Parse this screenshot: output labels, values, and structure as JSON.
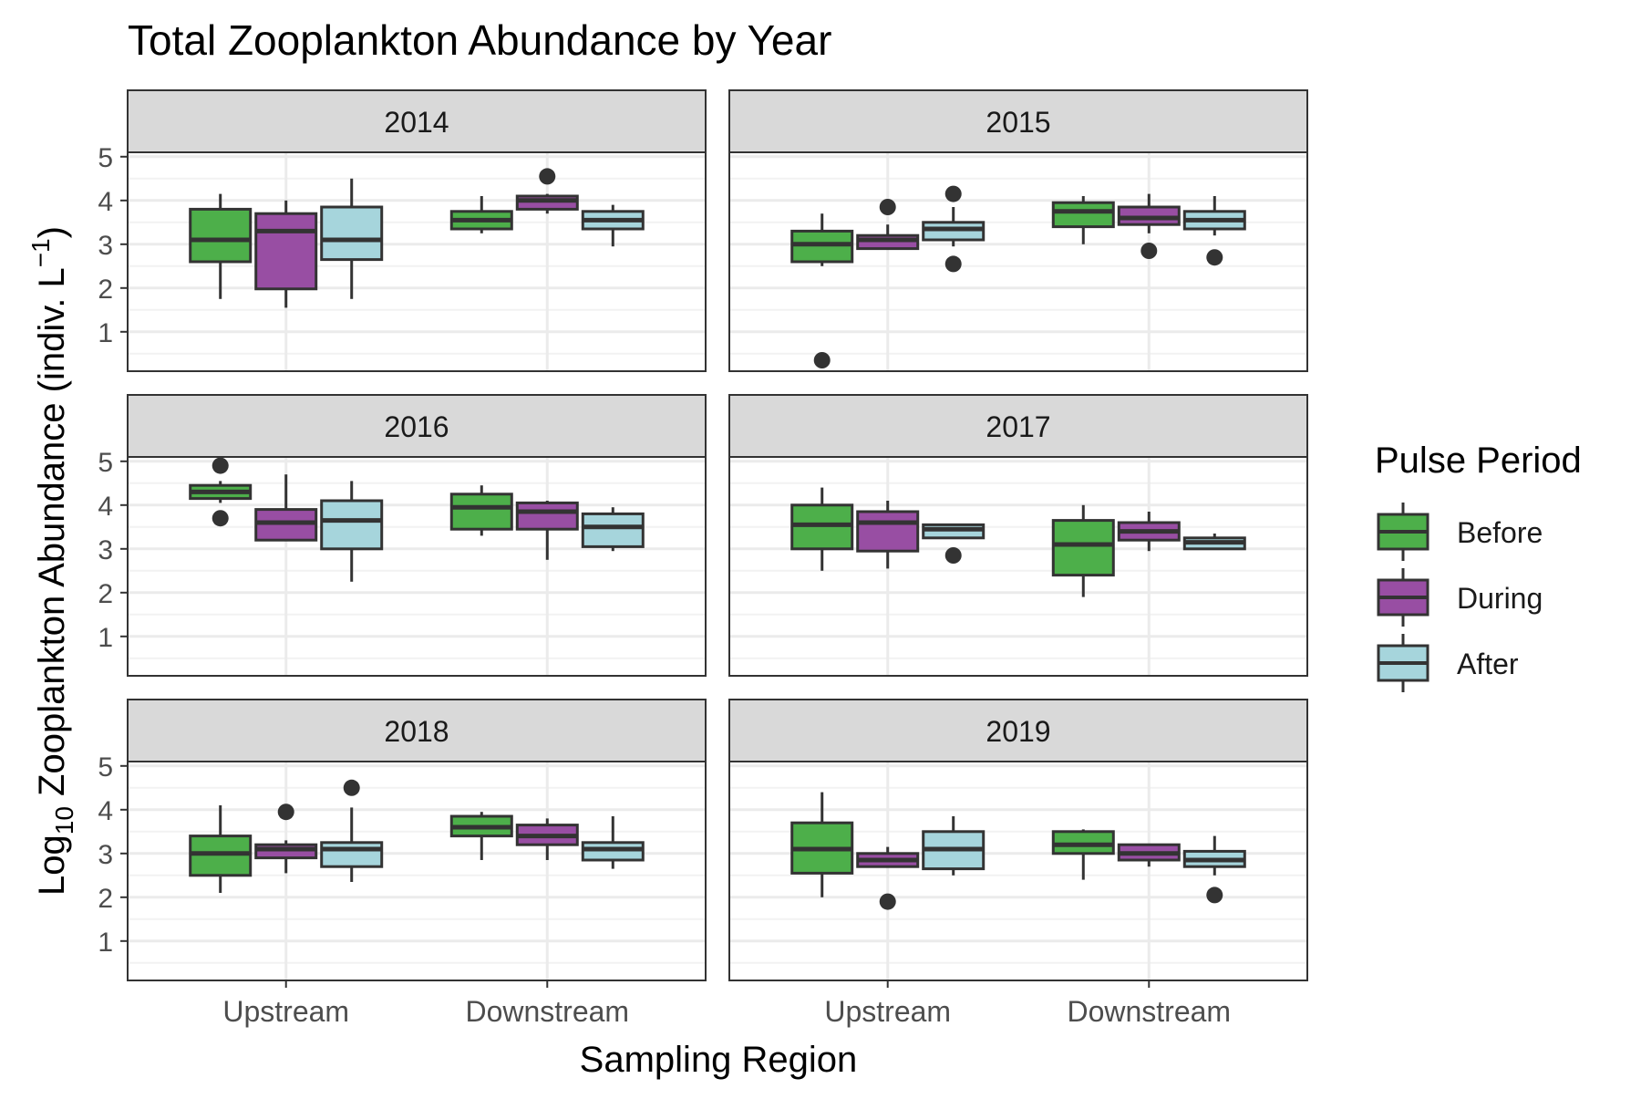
{
  "chart_data": {
    "type": "boxplot",
    "title": "Total Zooplankton Abundance by Year",
    "xlabel": "Sampling Region",
    "ylabel": {
      "prefix": "Log",
      "subscript": "10",
      "main": " Zooplankton Abundance (indiv. L",
      "superscript": "−1",
      "suffix": ")"
    },
    "ylim": [
      0.1,
      5.1
    ],
    "yticks": [
      1,
      2,
      3,
      4,
      5
    ],
    "grid": true,
    "categories": [
      "Upstream",
      "Downstream"
    ],
    "legend": {
      "title": "Pulse Period",
      "position": "right",
      "entries": [
        {
          "name": "Before",
          "color": "#4daf4a"
        },
        {
          "name": "During",
          "color": "#984ea3"
        },
        {
          "name": "After",
          "color": "#a6d5dc"
        }
      ]
    },
    "panels": [
      {
        "label": "2014",
        "groups": [
          {
            "category": "Upstream",
            "boxes": [
              {
                "period": "Before",
                "lower_whisker": 1.75,
                "q1": 2.6,
                "median": 3.1,
                "q3": 3.8,
                "upper_whisker": 4.15,
                "outliers": []
              },
              {
                "period": "During",
                "lower_whisker": 1.55,
                "q1": 1.98,
                "median": 3.3,
                "q3": 3.7,
                "upper_whisker": 4.0,
                "outliers": []
              },
              {
                "period": "After",
                "lower_whisker": 1.75,
                "q1": 2.65,
                "median": 3.1,
                "q3": 3.85,
                "upper_whisker": 4.5,
                "outliers": []
              }
            ]
          },
          {
            "category": "Downstream",
            "boxes": [
              {
                "period": "Before",
                "lower_whisker": 3.25,
                "q1": 3.35,
                "median": 3.55,
                "q3": 3.75,
                "upper_whisker": 4.1,
                "outliers": []
              },
              {
                "period": "During",
                "lower_whisker": 3.7,
                "q1": 3.8,
                "median": 4.0,
                "q3": 4.1,
                "upper_whisker": 4.15,
                "outliers": [
                  4.55
                ]
              },
              {
                "period": "After",
                "lower_whisker": 2.95,
                "q1": 3.35,
                "median": 3.55,
                "q3": 3.75,
                "upper_whisker": 3.9,
                "outliers": []
              }
            ]
          }
        ]
      },
      {
        "label": "2015",
        "groups": [
          {
            "category": "Upstream",
            "boxes": [
              {
                "period": "Before",
                "lower_whisker": 2.5,
                "q1": 2.6,
                "median": 3.0,
                "q3": 3.3,
                "upper_whisker": 3.7,
                "outliers": [
                  0.35
                ]
              },
              {
                "period": "During",
                "lower_whisker": 2.9,
                "q1": 2.9,
                "median": 3.1,
                "q3": 3.2,
                "upper_whisker": 3.45,
                "outliers": [
                  3.85
                ]
              },
              {
                "period": "After",
                "lower_whisker": 2.95,
                "q1": 3.1,
                "median": 3.35,
                "q3": 3.5,
                "upper_whisker": 3.85,
                "outliers": [
                  4.15,
                  2.55
                ]
              }
            ]
          },
          {
            "category": "Downstream",
            "boxes": [
              {
                "period": "Before",
                "lower_whisker": 3.0,
                "q1": 3.4,
                "median": 3.75,
                "q3": 3.95,
                "upper_whisker": 4.1,
                "outliers": []
              },
              {
                "period": "During",
                "lower_whisker": 3.25,
                "q1": 3.45,
                "median": 3.6,
                "q3": 3.85,
                "upper_whisker": 4.15,
                "outliers": [
                  2.85
                ]
              },
              {
                "period": "After",
                "lower_whisker": 3.2,
                "q1": 3.35,
                "median": 3.55,
                "q3": 3.75,
                "upper_whisker": 4.1,
                "outliers": [
                  2.7
                ]
              }
            ]
          }
        ]
      },
      {
        "label": "2016",
        "groups": [
          {
            "category": "Upstream",
            "boxes": [
              {
                "period": "Before",
                "lower_whisker": 4.05,
                "q1": 4.15,
                "median": 4.3,
                "q3": 4.45,
                "upper_whisker": 4.55,
                "outliers": [
                  4.9,
                  3.7
                ]
              },
              {
                "period": "During",
                "lower_whisker": 3.2,
                "q1": 3.2,
                "median": 3.6,
                "q3": 3.9,
                "upper_whisker": 4.7,
                "outliers": []
              },
              {
                "period": "After",
                "lower_whisker": 2.25,
                "q1": 3.0,
                "median": 3.65,
                "q3": 4.1,
                "upper_whisker": 4.55,
                "outliers": []
              }
            ]
          },
          {
            "category": "Downstream",
            "boxes": [
              {
                "period": "Before",
                "lower_whisker": 3.3,
                "q1": 3.45,
                "median": 3.95,
                "q3": 4.25,
                "upper_whisker": 4.45,
                "outliers": []
              },
              {
                "period": "During",
                "lower_whisker": 2.75,
                "q1": 3.45,
                "median": 3.85,
                "q3": 4.05,
                "upper_whisker": 4.1,
                "outliers": []
              },
              {
                "period": "After",
                "lower_whisker": 2.95,
                "q1": 3.05,
                "median": 3.5,
                "q3": 3.8,
                "upper_whisker": 3.95,
                "outliers": []
              }
            ]
          }
        ]
      },
      {
        "label": "2017",
        "groups": [
          {
            "category": "Upstream",
            "boxes": [
              {
                "period": "Before",
                "lower_whisker": 2.5,
                "q1": 3.0,
                "median": 3.55,
                "q3": 4.0,
                "upper_whisker": 4.4,
                "outliers": []
              },
              {
                "period": "During",
                "lower_whisker": 2.55,
                "q1": 2.95,
                "median": 3.6,
                "q3": 3.85,
                "upper_whisker": 4.1,
                "outliers": []
              },
              {
                "period": "After",
                "lower_whisker": 3.25,
                "q1": 3.25,
                "median": 3.45,
                "q3": 3.55,
                "upper_whisker": 3.55,
                "outliers": [
                  2.85
                ]
              }
            ]
          },
          {
            "category": "Downstream",
            "boxes": [
              {
                "period": "Before",
                "lower_whisker": 1.9,
                "q1": 2.4,
                "median": 3.1,
                "q3": 3.65,
                "upper_whisker": 4.0,
                "outliers": []
              },
              {
                "period": "During",
                "lower_whisker": 2.95,
                "q1": 3.2,
                "median": 3.4,
                "q3": 3.6,
                "upper_whisker": 3.85,
                "outliers": []
              },
              {
                "period": "After",
                "lower_whisker": 3.0,
                "q1": 3.0,
                "median": 3.15,
                "q3": 3.25,
                "upper_whisker": 3.35,
                "outliers": []
              }
            ]
          }
        ]
      },
      {
        "label": "2018",
        "groups": [
          {
            "category": "Upstream",
            "boxes": [
              {
                "period": "Before",
                "lower_whisker": 2.1,
                "q1": 2.5,
                "median": 3.0,
                "q3": 3.4,
                "upper_whisker": 4.1,
                "outliers": []
              },
              {
                "period": "During",
                "lower_whisker": 2.55,
                "q1": 2.9,
                "median": 3.1,
                "q3": 3.2,
                "upper_whisker": 3.3,
                "outliers": [
                  3.95
                ]
              },
              {
                "period": "After",
                "lower_whisker": 2.35,
                "q1": 2.7,
                "median": 3.1,
                "q3": 3.25,
                "upper_whisker": 4.05,
                "outliers": [
                  4.5
                ]
              }
            ]
          },
          {
            "category": "Downstream",
            "boxes": [
              {
                "period": "Before",
                "lower_whisker": 2.85,
                "q1": 3.4,
                "median": 3.6,
                "q3": 3.85,
                "upper_whisker": 3.95,
                "outliers": []
              },
              {
                "period": "During",
                "lower_whisker": 2.85,
                "q1": 3.2,
                "median": 3.4,
                "q3": 3.65,
                "upper_whisker": 3.8,
                "outliers": []
              },
              {
                "period": "After",
                "lower_whisker": 2.65,
                "q1": 2.85,
                "median": 3.1,
                "q3": 3.25,
                "upper_whisker": 3.85,
                "outliers": []
              }
            ]
          }
        ]
      },
      {
        "label": "2019",
        "groups": [
          {
            "category": "Upstream",
            "boxes": [
              {
                "period": "Before",
                "lower_whisker": 2.0,
                "q1": 2.55,
                "median": 3.1,
                "q3": 3.7,
                "upper_whisker": 4.4,
                "outliers": []
              },
              {
                "period": "During",
                "lower_whisker": 2.7,
                "q1": 2.7,
                "median": 2.85,
                "q3": 3.0,
                "upper_whisker": 3.15,
                "outliers": [
                  1.9
                ]
              },
              {
                "period": "After",
                "lower_whisker": 2.5,
                "q1": 2.65,
                "median": 3.1,
                "q3": 3.5,
                "upper_whisker": 3.85,
                "outliers": []
              }
            ]
          },
          {
            "category": "Downstream",
            "boxes": [
              {
                "period": "Before",
                "lower_whisker": 2.4,
                "q1": 3.0,
                "median": 3.2,
                "q3": 3.5,
                "upper_whisker": 3.55,
                "outliers": []
              },
              {
                "period": "During",
                "lower_whisker": 2.7,
                "q1": 2.85,
                "median": 3.0,
                "q3": 3.2,
                "upper_whisker": 3.2,
                "outliers": []
              },
              {
                "period": "After",
                "lower_whisker": 2.5,
                "q1": 2.7,
                "median": 2.85,
                "q3": 3.05,
                "upper_whisker": 3.4,
                "outliers": [
                  2.05
                ]
              }
            ]
          }
        ]
      }
    ]
  }
}
